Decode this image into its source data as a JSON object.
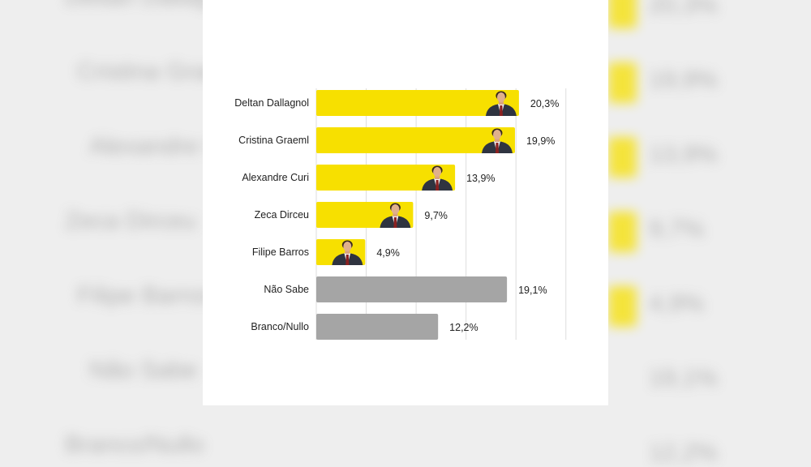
{
  "chart_data": {
    "type": "bar",
    "orientation": "horizontal",
    "categories": [
      "Deltan Dallagnol",
      "Cristina Graeml",
      "Alexandre Curi",
      "Zeca Dirceu",
      "Filipe Barros",
      "Não Sabe",
      "Branco/Nullo"
    ],
    "values": [
      20.3,
      19.9,
      13.9,
      9.7,
      4.9,
      19.1,
      12.2
    ],
    "value_labels": [
      "20,3%",
      "19,9%",
      "13,9%",
      "9,7%",
      "4,9%",
      "19,1%",
      "12,2%"
    ],
    "bar_colors": [
      "#f7e000",
      "#f7e000",
      "#f7e000",
      "#f7e000",
      "#f7e000",
      "#a5a5a5",
      "#a5a5a5"
    ],
    "has_photo": [
      true,
      true,
      true,
      true,
      true,
      false,
      false
    ],
    "xlim": [
      0,
      25
    ],
    "grid": true,
    "title": "",
    "xlabel": "",
    "ylabel": ""
  },
  "colors": {
    "candidate": "#f7e000",
    "other": "#a5a5a5",
    "grid": "#dddddd",
    "background": "#eeeeee"
  }
}
